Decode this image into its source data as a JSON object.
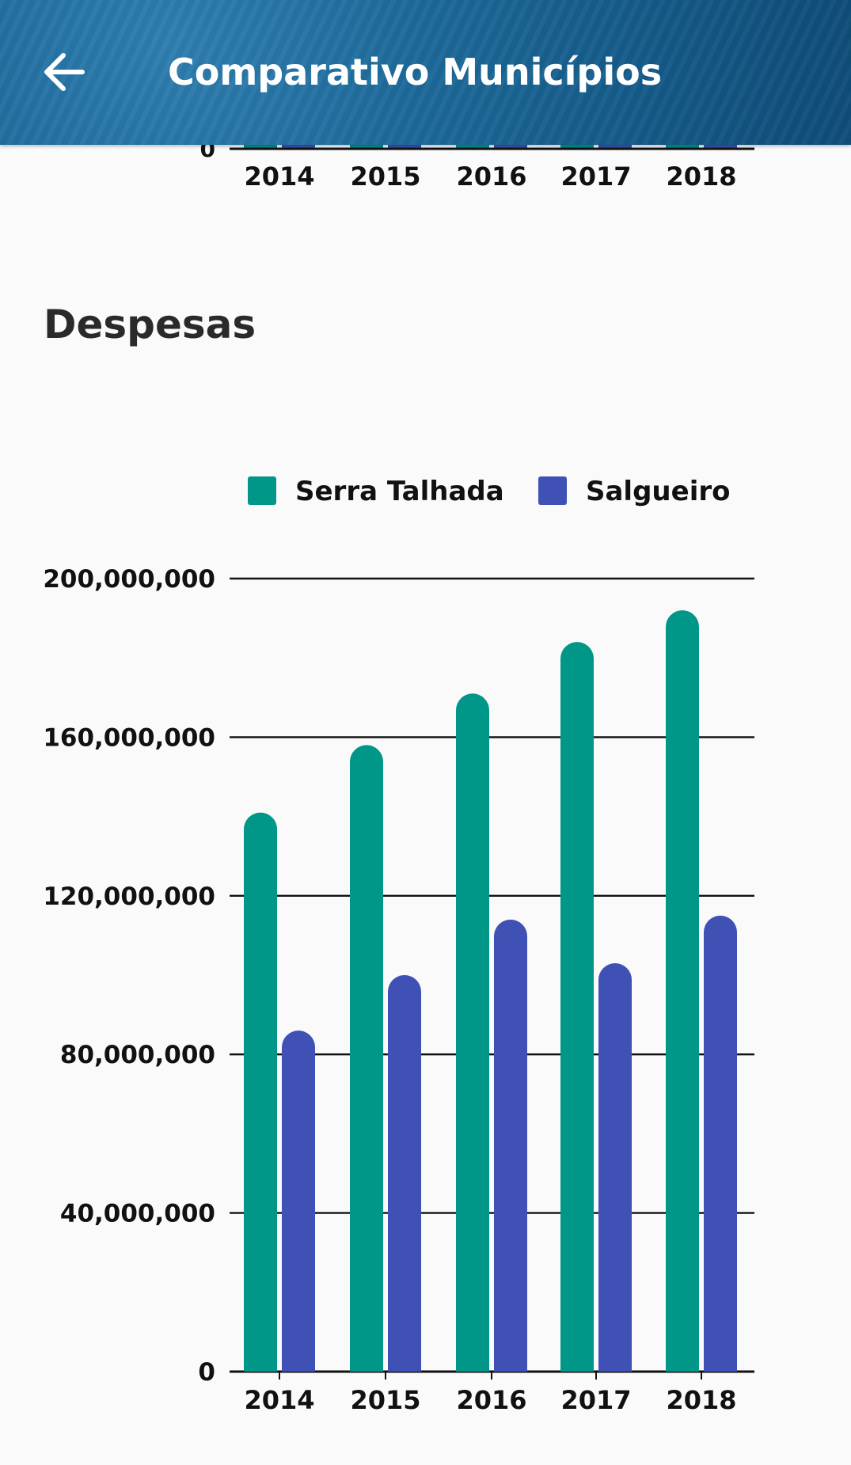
{
  "header": {
    "title": "Comparativo Municípios"
  },
  "section": {
    "title": "Despesas"
  },
  "top_chart": {
    "categories": [
      "2014",
      "2015",
      "2016",
      "2017",
      "2018"
    ],
    "zero_label": "0"
  },
  "colors": {
    "serra_talhada": "#009688",
    "salgueiro": "#3f51b5"
  },
  "chart_data": {
    "type": "bar",
    "title": "Despesas",
    "categories": [
      "2014",
      "2015",
      "2016",
      "2017",
      "2018"
    ],
    "series": [
      {
        "name": "Serra Talhada",
        "color": "#009688",
        "values": [
          141000000,
          158000000,
          171000000,
          184000000,
          192000000
        ]
      },
      {
        "name": "Salgueiro",
        "color": "#3f51b5",
        "values": [
          86000000,
          100000000,
          114000000,
          103000000,
          115000000
        ]
      }
    ],
    "ylim": [
      0,
      200000000
    ],
    "yticks": [
      0,
      40000000,
      80000000,
      120000000,
      160000000,
      200000000
    ],
    "ytick_labels": [
      "0",
      "40,000,000",
      "80,000,000",
      "120,000,000",
      "160,000,000",
      "200,000,000"
    ],
    "legend_position": "top",
    "grid": true
  }
}
